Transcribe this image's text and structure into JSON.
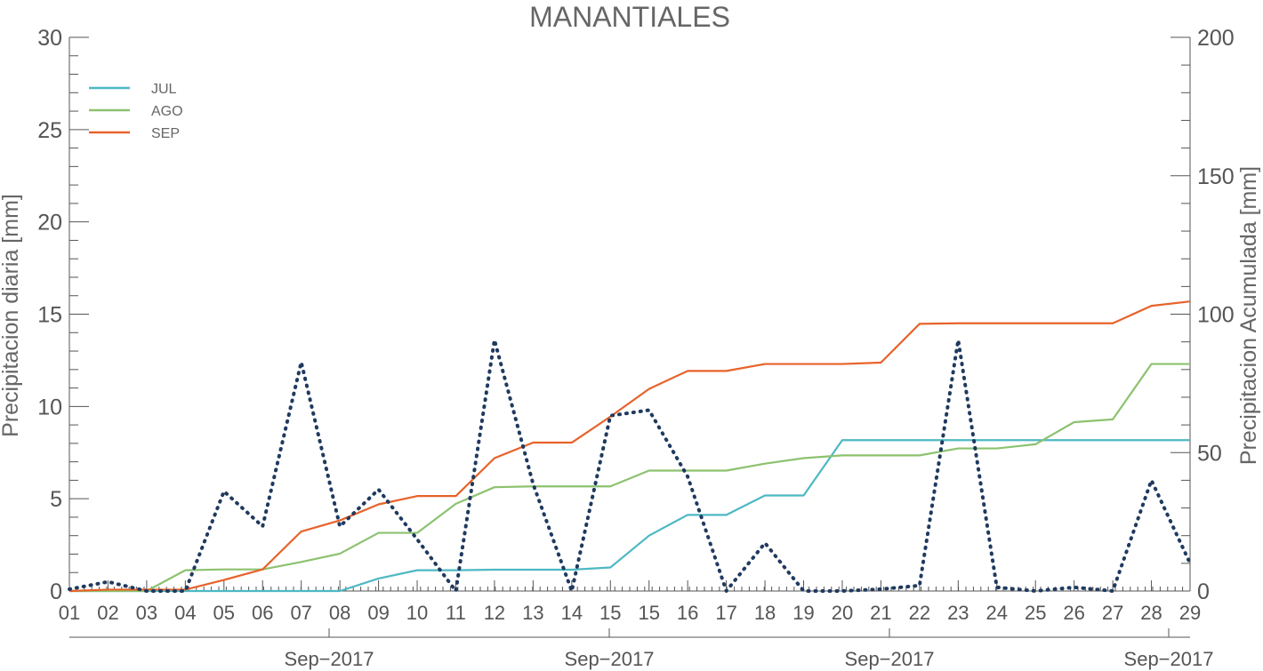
{
  "chart_data": {
    "type": "line",
    "title": "MANANTIALES",
    "ylabel_left": "Precipitacion diaria [mm]",
    "ylabel_right": "Precipitacion Acumulada [mm]",
    "x_tick_labels": [
      "01",
      "02",
      "03",
      "04",
      "05",
      "06",
      "07",
      "08",
      "09",
      "10",
      "11",
      "12",
      "13",
      "14",
      "15",
      "15",
      "16",
      "17",
      "18",
      "19",
      "20",
      "21",
      "22",
      "23",
      "24",
      "25",
      "26",
      "27",
      "28",
      "29"
    ],
    "x_date_labels": [
      "Sep−2017",
      "Sep−2017",
      "Sep−2017",
      "Sep−2017"
    ],
    "ylim_left": [
      0,
      30
    ],
    "yticks_left": [
      0,
      5,
      10,
      15,
      20,
      25,
      30
    ],
    "ylim_right": [
      0,
      200
    ],
    "yticks_right": [
      0,
      50,
      100,
      150,
      200
    ],
    "grid": false,
    "legend_position": "top-left",
    "daily_series": {
      "axis": "left",
      "style": "dotted",
      "color": "#1f3a5f",
      "values": [
        0.1,
        0.5,
        0,
        0,
        5.4,
        3.5,
        12.4,
        3.5,
        5.5,
        2.8,
        0,
        13.6,
        5.8,
        0,
        9.5,
        9.8,
        6.2,
        0,
        2.6,
        0,
        0,
        0.1,
        0.3,
        13.6,
        0.2,
        0,
        0.2,
        0,
        6,
        1.5
      ]
    },
    "series": [
      {
        "name": "JUL",
        "axis": "right",
        "color": "#4db8c4",
        "values": [
          0,
          0,
          0,
          0,
          0,
          0,
          0,
          0,
          4.5,
          7.5,
          7.5,
          7.7,
          7.7,
          7.7,
          8.5,
          20,
          27.5,
          27.5,
          34.5,
          34.5,
          54.5,
          54.5,
          54.5,
          54.5,
          54.5,
          54.5,
          54.5,
          54.5,
          54.5,
          54.5
        ]
      },
      {
        "name": "AGO",
        "axis": "right",
        "color": "#8cc26f",
        "values": [
          0,
          0,
          0,
          7.5,
          7.8,
          7.8,
          10.5,
          13.5,
          21,
          21,
          31.5,
          37.5,
          37.8,
          37.8,
          37.8,
          43.5,
          43.5,
          43.5,
          46,
          48,
          49,
          49,
          49,
          51.5,
          51.5,
          53,
          61,
          62,
          82,
          82
        ]
      },
      {
        "name": "SEP",
        "axis": "right",
        "color": "#e8622a",
        "values": [
          0,
          0.5,
          0.5,
          0.5,
          4,
          7.8,
          21.5,
          25.5,
          31.3,
          34.3,
          34.3,
          48,
          53.6,
          53.6,
          63,
          73,
          79.5,
          79.5,
          82,
          82,
          82,
          82.5,
          96.5,
          96.7,
          96.7,
          96.7,
          96.7,
          96.7,
          103,
          104.6
        ]
      }
    ]
  }
}
